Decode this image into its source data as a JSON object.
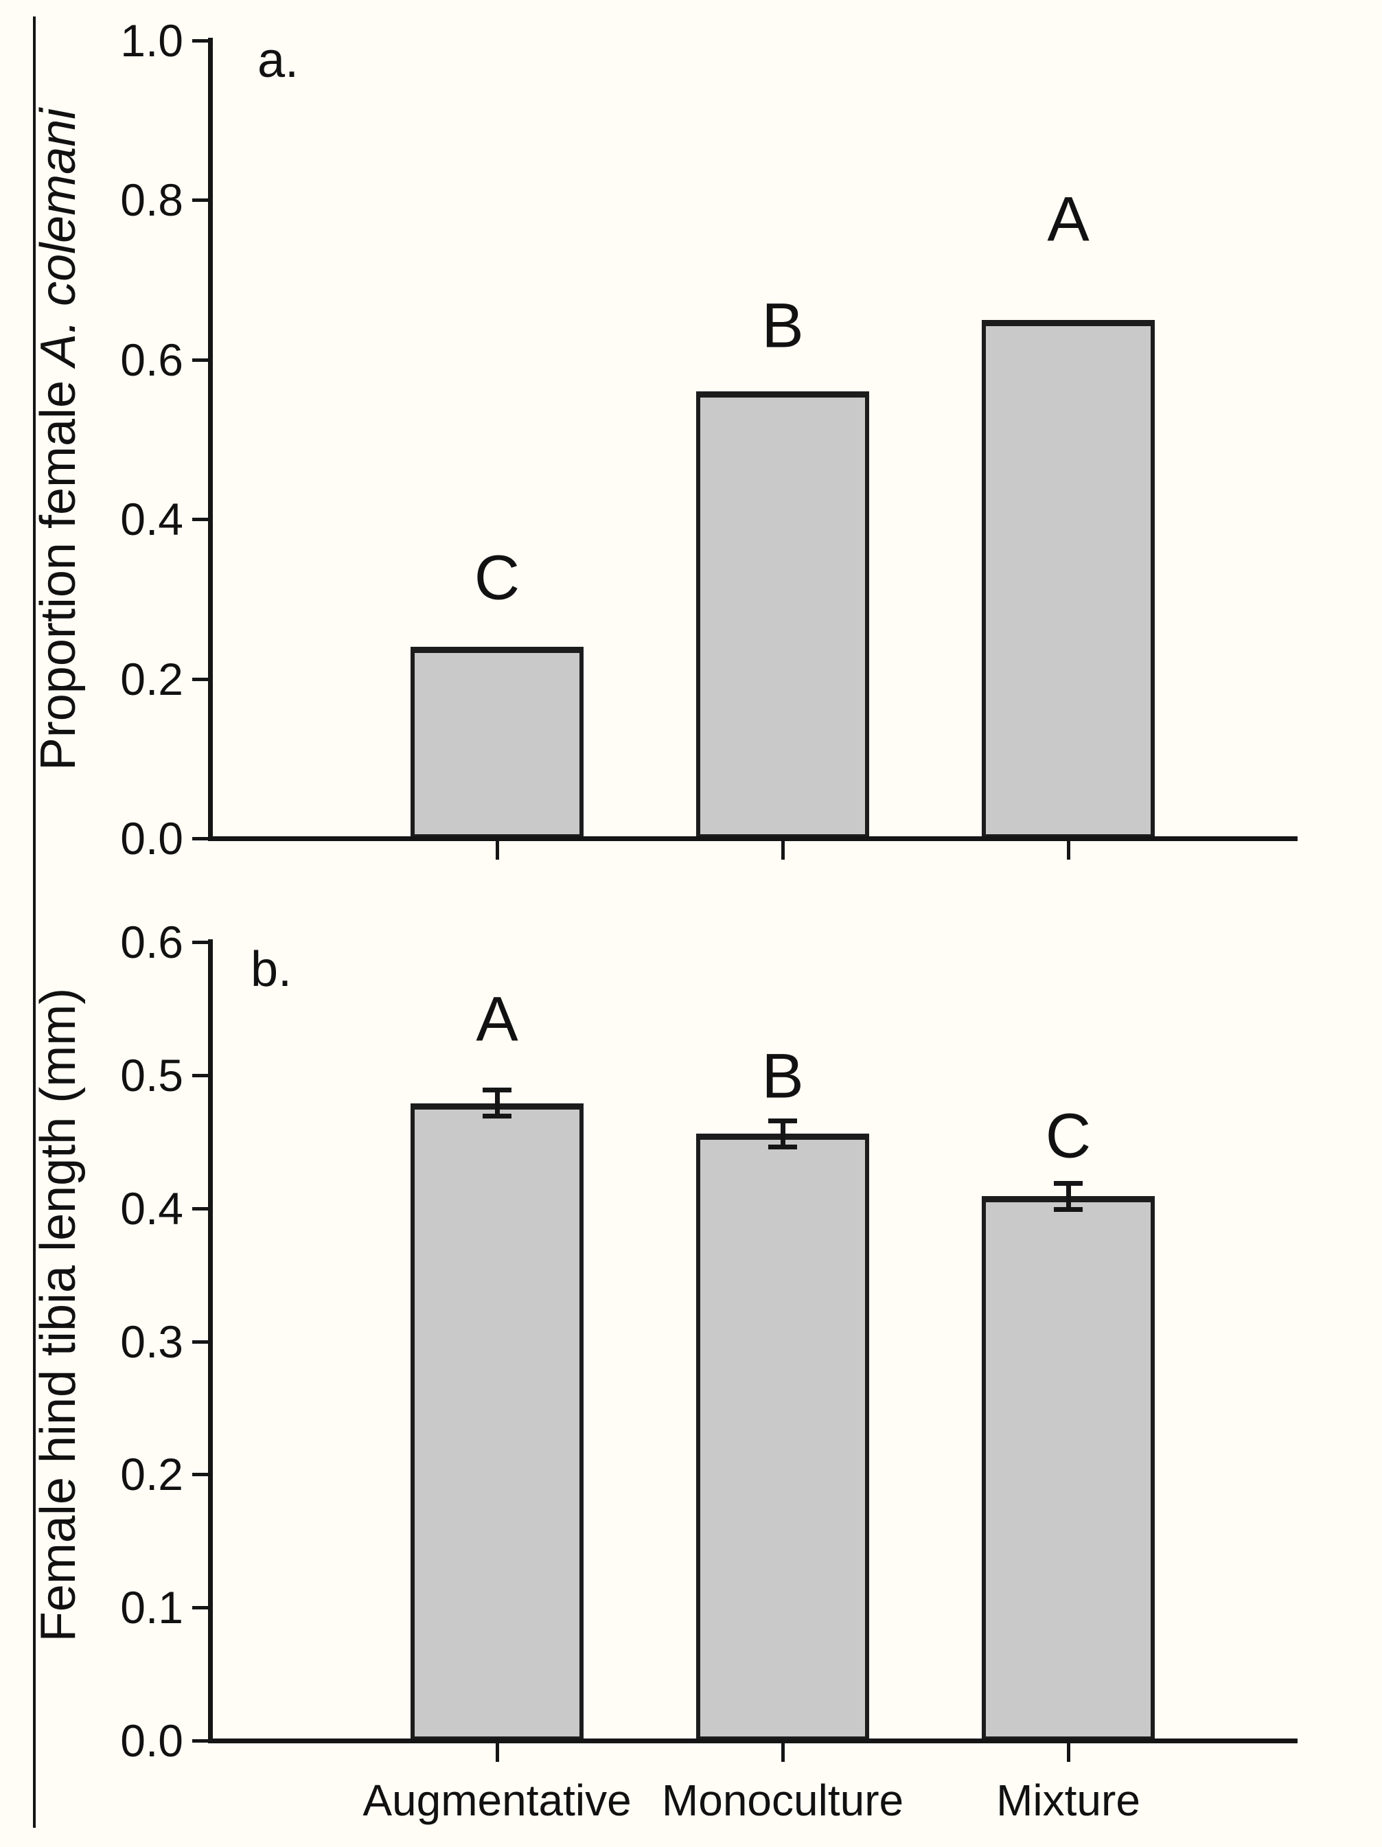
{
  "colors": {
    "background": "#fffdf6",
    "bar_fill": "#c9c9c9",
    "bar_border": "#1c1c1c",
    "axis": "#151515",
    "text": "#111111"
  },
  "chart_data": [
    {
      "type": "bar",
      "panel_label": "a.",
      "ylabel_prefix": "Proportion female ",
      "ylabel_italic": "A. colemani",
      "categories": [
        "Augmentative",
        "Monoculture",
        "Mixture"
      ],
      "values": [
        0.24,
        0.56,
        0.65
      ],
      "errors": null,
      "sig_letters": [
        "C",
        "B",
        "A"
      ],
      "ylim": [
        0.0,
        1.0
      ],
      "yticks": [
        0.0,
        0.2,
        0.4,
        0.6,
        0.8,
        1.0
      ],
      "ytick_labels": [
        "0.0",
        "0.2",
        "0.4",
        "0.6",
        "0.8",
        "1.0"
      ],
      "show_category_labels": false,
      "legend": "none",
      "grid": "off"
    },
    {
      "type": "bar",
      "panel_label": "b.",
      "ylabel_prefix": "Female hind tibia length (mm)",
      "ylabel_italic": "",
      "categories": [
        "Augmentative",
        "Monoculture",
        "Mixture"
      ],
      "values": [
        0.479,
        0.456,
        0.409
      ],
      "errors": [
        0.01,
        0.01,
        0.01
      ],
      "sig_letters": [
        "A",
        "B",
        "C"
      ],
      "ylim": [
        0.0,
        0.6
      ],
      "yticks": [
        0.0,
        0.1,
        0.2,
        0.3,
        0.4,
        0.5,
        0.6
      ],
      "ytick_labels": [
        "0.0",
        "0.1",
        "0.2",
        "0.3",
        "0.4",
        "0.5",
        "0.6"
      ],
      "show_category_labels": true,
      "legend": "none",
      "grid": "off"
    }
  ]
}
